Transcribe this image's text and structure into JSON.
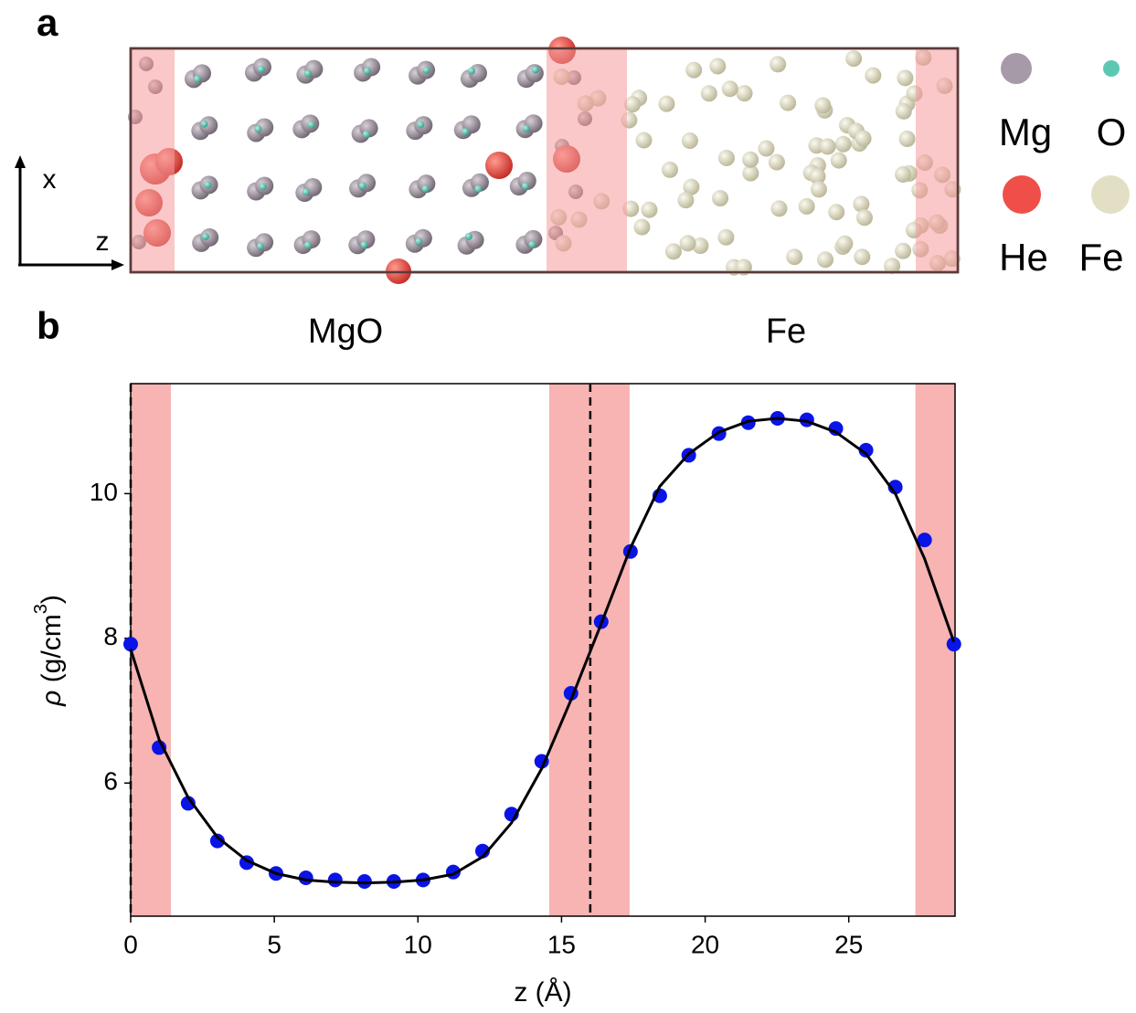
{
  "panel_labels": [
    "a",
    "b"
  ],
  "snapshot": {
    "axis_labels": {
      "x": "x",
      "z": "z"
    },
    "legend": [
      {
        "name": "Mg",
        "color": "#a79aa8"
      },
      {
        "name": "O",
        "color": "#5dc7b2"
      },
      {
        "name": "He",
        "color": "#ef4f48"
      },
      {
        "name": "Fe",
        "color": "#e2dfc4"
      }
    ],
    "region_labels": [
      "MgO",
      "Fe"
    ]
  },
  "chart_data": {
    "type": "scatter",
    "xlabel": "z (Å)",
    "ylabel": {
      "start": "ρ",
      "middle": " (g/cm",
      "sup": "3",
      "end": ")"
    },
    "x": [
      0,
      0.99,
      2.0,
      3.02,
      4.04,
      5.06,
      6.1,
      7.12,
      8.14,
      9.16,
      10.18,
      11.23,
      12.25,
      13.26,
      14.31,
      15.33,
      16.38,
      17.4,
      18.42,
      19.43,
      20.48,
      21.5,
      22.52,
      23.54,
      24.55,
      25.6,
      26.62,
      27.64,
      28.66
    ],
    "series": [
      {
        "type": "scatter",
        "color": "#0a14e6",
        "values": [
          7.92,
          6.49,
          5.72,
          5.2,
          4.9,
          4.75,
          4.69,
          4.66,
          4.64,
          4.64,
          4.66,
          4.77,
          5.06,
          5.57,
          6.3,
          7.24,
          8.23,
          9.2,
          9.97,
          10.53,
          10.83,
          10.98,
          11.04,
          11.02,
          10.9,
          10.6,
          10.09,
          9.36,
          7.92
        ]
      },
      {
        "type": "line",
        "color": "#000000",
        "values": [
          7.85,
          6.6,
          5.8,
          5.25,
          4.93,
          4.75,
          4.66,
          4.63,
          4.62,
          4.63,
          4.66,
          4.74,
          4.98,
          5.45,
          6.2,
          7.15,
          8.2,
          9.25,
          10.1,
          10.55,
          10.85,
          11.0,
          11.04,
          11.0,
          10.85,
          10.55,
          10.0,
          9.1,
          7.95
        ]
      }
    ],
    "shaded_regions": [
      [
        0,
        1.4
      ],
      [
        14.57,
        17.37
      ],
      [
        27.32,
        28.7
      ]
    ],
    "shade_color": "#f59a9a",
    "vlines": [
      0,
      16.0
    ],
    "xlim": [
      0,
      28.7
    ],
    "xticks": [
      0,
      5,
      10,
      15,
      20,
      25
    ],
    "ylim": [
      4.16,
      11.52
    ],
    "yticks": [
      6,
      8,
      10
    ]
  }
}
